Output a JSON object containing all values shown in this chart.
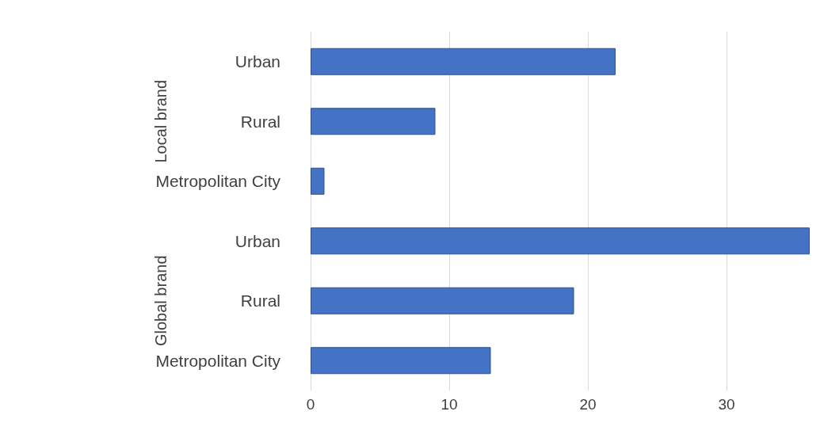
{
  "chart_data": {
    "type": "bar",
    "orientation": "horizontal",
    "categories": [
      "Urban",
      "Rural",
      "Metropolitan City",
      "Urban",
      "Rural",
      "Metropolitan City"
    ],
    "values": [
      22,
      9,
      1,
      36,
      19,
      13
    ],
    "color": "#4472c4",
    "xlim": [
      0,
      36
    ],
    "xticks": [
      0,
      10,
      20,
      30
    ],
    "grid": "x",
    "annotations": [
      "Local brand",
      "Global brand"
    ]
  }
}
